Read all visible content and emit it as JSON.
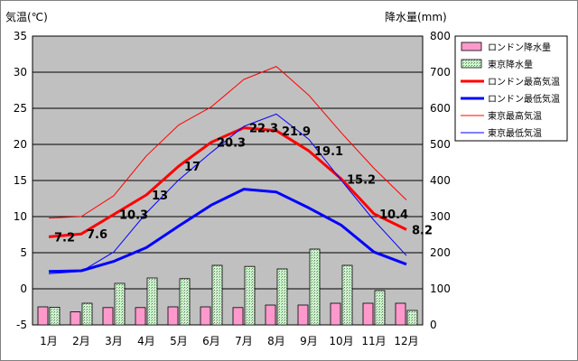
{
  "chart_data": {
    "type": "bar+line",
    "title": "",
    "left_axis": {
      "label": "気温(℃)",
      "min": -5,
      "max": 35,
      "ticks": [
        35,
        30,
        25,
        20,
        15,
        10,
        5,
        0,
        -5
      ]
    },
    "right_axis": {
      "label": "降水量(mm)",
      "min": 0,
      "max": 800,
      "ticks": [
        800,
        700,
        600,
        500,
        400,
        300,
        200,
        100,
        0
      ]
    },
    "categories": [
      "1月",
      "2月",
      "3月",
      "4月",
      "5月",
      "6月",
      "7月",
      "8月",
      "9月",
      "10月",
      "11月",
      "12月"
    ],
    "bar_series": [
      {
        "name": "ロンドン降水量",
        "color": "#ff99cc",
        "values": [
          50,
          36,
          48,
          48,
          50,
          50,
          48,
          55,
          55,
          60,
          60,
          60
        ]
      },
      {
        "name": "東京降水量",
        "color": "#ccffcc",
        "values": [
          49,
          60,
          115,
          130,
          128,
          165,
          162,
          155,
          210,
          165,
          95,
          40
        ]
      }
    ],
    "line_series": [
      {
        "name": "ロンドン最高気温",
        "color": "#ff0000",
        "width": 3,
        "values": [
          7.2,
          7.6,
          10.3,
          13,
          17,
          20.3,
          22.3,
          21.9,
          19.1,
          15.2,
          10.4,
          8.2
        ],
        "labels": [
          "7.2",
          "7.6",
          "10.3",
          "13",
          "17",
          "20.3",
          "22.3",
          "21.9",
          "19.1",
          "15.2",
          "10.4",
          "8.2"
        ]
      },
      {
        "name": "ロンドン最低気温",
        "color": "#0000ff",
        "width": 3,
        "values": [
          2.4,
          2.5,
          3.8,
          5.7,
          8.7,
          11.6,
          13.8,
          13.4,
          11.2,
          8.8,
          5.1,
          3.4
        ]
      },
      {
        "name": "東京最高気温",
        "color": "#ff0000",
        "width": 1,
        "values": [
          9.8,
          10,
          12.9,
          18.4,
          22.7,
          25.2,
          29,
          30.8,
          26.8,
          21.6,
          16.7,
          12.3
        ]
      },
      {
        "name": "東京最低気温",
        "color": "#0000ff",
        "width": 1,
        "values": [
          2.1,
          2.4,
          5.1,
          10.5,
          15.1,
          18.9,
          22.5,
          24.2,
          20.7,
          15,
          9.5,
          4.6
        ]
      }
    ],
    "grid": true,
    "legend_position": "right"
  }
}
